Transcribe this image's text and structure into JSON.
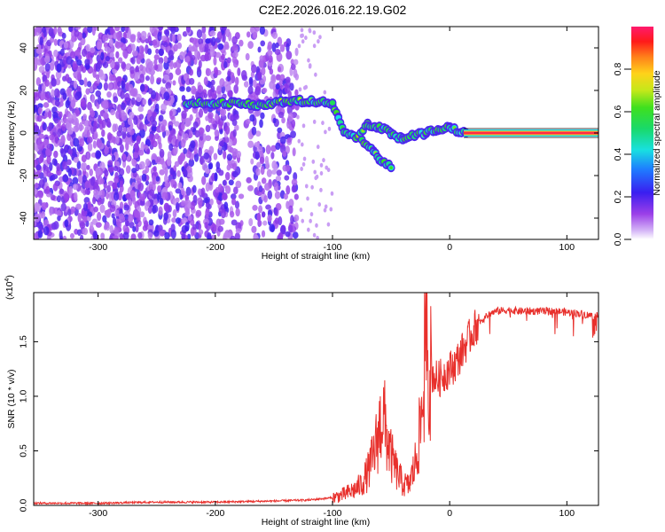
{
  "title": "C2E2.2026.016.22.19.G02",
  "colors": {
    "spectrogram_low": "#8a2be2",
    "snr_line": "#e8302c",
    "ridge_tail": "#ff2a4a"
  },
  "chart_data": [
    {
      "type": "heatmap",
      "name": "spectrogram",
      "xlabel": "Height of straight line (km)",
      "ylabel": "Frequency (Hz)",
      "xlim": [
        -355,
        127
      ],
      "ylim": [
        -50,
        50
      ],
      "xticks": [
        -300,
        -200,
        -100,
        0,
        100
      ],
      "yticks": [
        -40,
        -20,
        0,
        20,
        40
      ],
      "xtick_labels": [
        "-300",
        "-200",
        "-100",
        "0",
        "100"
      ],
      "ytick_labels": [
        "-40",
        "-20",
        "0",
        "20",
        "40"
      ],
      "colorbar": {
        "label": "Normalized spectral amplitude",
        "range": [
          0,
          1
        ],
        "ticks": [
          0.0,
          0.2,
          0.4,
          0.6,
          0.8
        ],
        "tick_labels": [
          "0.0",
          "0.2",
          "0.4",
          "0.6",
          "0.8"
        ],
        "colormap": "rainbow"
      },
      "ridge": {
        "description": "dominant tone",
        "points": [
          [
            -225,
            14
          ],
          [
            -200,
            14
          ],
          [
            -180,
            14
          ],
          [
            -160,
            13
          ],
          [
            -140,
            15
          ],
          [
            -120,
            15
          ],
          [
            -100,
            14
          ],
          [
            -95,
            8
          ],
          [
            -90,
            1
          ],
          [
            -80,
            -2
          ],
          [
            -70,
            4
          ],
          [
            -60,
            3
          ],
          [
            -50,
            0
          ],
          [
            -40,
            -3
          ],
          [
            -30,
            -1
          ],
          [
            -20,
            0
          ],
          [
            -10,
            2
          ],
          [
            0,
            3
          ],
          [
            10,
            0
          ],
          [
            20,
            0
          ],
          [
            60,
            0
          ],
          [
            127,
            0
          ]
        ],
        "branch": [
          [
            -75,
            -3
          ],
          [
            -65,
            -8
          ],
          [
            -60,
            -12
          ],
          [
            -50,
            -16
          ]
        ]
      }
    },
    {
      "type": "line",
      "name": "snr",
      "xlabel": "Height of straight line (km)",
      "ylabel": "SNR (10 * v/v)",
      "scale_note": "(x10^4)",
      "scale_base": "(x10",
      "scale_exp": "4",
      "scale_close": ")",
      "xlim": [
        -355,
        127
      ],
      "ylim": [
        0,
        1.95
      ],
      "xticks": [
        -300,
        -200,
        -100,
        0,
        100
      ],
      "yticks": [
        0.0,
        0.5,
        1.0,
        1.5
      ],
      "xtick_labels": [
        "-300",
        "-200",
        "-100",
        "0",
        "100"
      ],
      "ytick_labels": [
        "0.0",
        "0.5",
        "1.0",
        "1.5"
      ],
      "series": [
        {
          "name": "SNR",
          "x": [
            -355,
            -300,
            -250,
            -200,
            -150,
            -120,
            -100,
            -90,
            -80,
            -75,
            -70,
            -65,
            -60,
            -57,
            -54,
            -50,
            -45,
            -40,
            -35,
            -30,
            -25,
            -22,
            -20,
            -18,
            -15,
            -10,
            -5,
            0,
            5,
            10,
            15,
            20,
            25,
            30,
            35,
            40,
            50,
            60,
            70,
            80,
            90,
            100,
            110,
            120,
            127
          ],
          "y": [
            0.02,
            0.02,
            0.03,
            0.03,
            0.04,
            0.05,
            0.07,
            0.1,
            0.15,
            0.2,
            0.3,
            0.45,
            0.7,
            0.85,
            0.65,
            0.45,
            0.3,
            0.2,
            0.18,
            0.35,
            0.7,
            1.1,
            1.55,
            1.25,
            1.2,
            1.15,
            1.2,
            1.25,
            1.3,
            1.4,
            1.5,
            1.6,
            1.68,
            1.72,
            1.76,
            1.78,
            1.79,
            1.78,
            1.78,
            1.78,
            1.78,
            1.77,
            1.76,
            1.74,
            1.73
          ]
        }
      ]
    }
  ]
}
